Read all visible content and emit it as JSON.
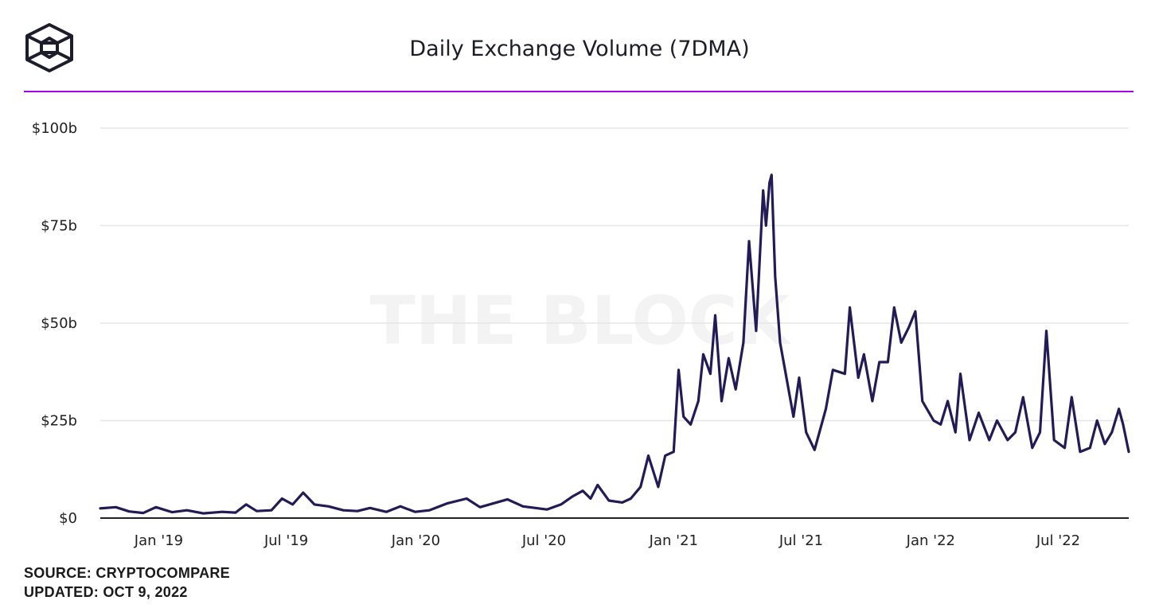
{
  "header": {
    "title": "Daily Exchange Volume (7DMA)",
    "logo_icon": "the-block-cube-icon"
  },
  "watermark": "THE BLOCK",
  "footer": {
    "source": "SOURCE: CRYPTOCOMPARE",
    "updated": "UPDATED: OCT 9, 2022"
  },
  "colors": {
    "accent_rule": "#a100e6",
    "series": "#221b55"
  },
  "chart_data": {
    "type": "line",
    "title": "Daily Exchange Volume (7DMA)",
    "xlabel": "",
    "ylabel": "",
    "grid": true,
    "ylim": [
      0,
      100
    ],
    "xlim": [
      "2018-10-10",
      "2022-10-09"
    ],
    "y_ticks": [
      {
        "value": 0,
        "label": "$0"
      },
      {
        "value": 25,
        "label": "$25b"
      },
      {
        "value": 50,
        "label": "$50b"
      },
      {
        "value": 75,
        "label": "$75b"
      },
      {
        "value": 100,
        "label": "$100b"
      }
    ],
    "x_ticks": [
      {
        "date": "2019-01-01",
        "label": "Jan '19"
      },
      {
        "date": "2019-07-01",
        "label": "Jul '19"
      },
      {
        "date": "2020-01-01",
        "label": "Jan '20"
      },
      {
        "date": "2020-07-01",
        "label": "Jul '20"
      },
      {
        "date": "2021-01-01",
        "label": "Jan '21"
      },
      {
        "date": "2021-07-01",
        "label": "Jul '21"
      },
      {
        "date": "2022-01-01",
        "label": "Jan '22"
      },
      {
        "date": "2022-07-01",
        "label": "Jul '22"
      }
    ],
    "series": [
      {
        "points": [
          [
            "2018-10-10",
            2.5
          ],
          [
            "2018-11-01",
            2.8
          ],
          [
            "2018-11-20",
            1.7
          ],
          [
            "2018-12-10",
            1.3
          ],
          [
            "2018-12-28",
            2.8
          ],
          [
            "2019-01-20",
            1.5
          ],
          [
            "2019-02-10",
            2.0
          ],
          [
            "2019-03-05",
            1.2
          ],
          [
            "2019-04-01",
            1.6
          ],
          [
            "2019-04-20",
            1.4
          ],
          [
            "2019-05-05",
            3.5
          ],
          [
            "2019-05-20",
            1.8
          ],
          [
            "2019-06-10",
            2.0
          ],
          [
            "2019-06-25",
            5.0
          ],
          [
            "2019-07-10",
            3.5
          ],
          [
            "2019-07-25",
            6.5
          ],
          [
            "2019-08-10",
            3.5
          ],
          [
            "2019-08-30",
            3.0
          ],
          [
            "2019-09-20",
            2.0
          ],
          [
            "2019-10-10",
            1.8
          ],
          [
            "2019-10-28",
            2.6
          ],
          [
            "2019-11-20",
            1.6
          ],
          [
            "2019-12-10",
            3.0
          ],
          [
            "2019-12-31",
            1.6
          ],
          [
            "2020-01-20",
            2.0
          ],
          [
            "2020-02-15",
            3.8
          ],
          [
            "2020-03-13",
            5.0
          ],
          [
            "2020-04-01",
            2.8
          ],
          [
            "2020-05-10",
            4.8
          ],
          [
            "2020-06-01",
            3.0
          ],
          [
            "2020-07-05",
            2.2
          ],
          [
            "2020-07-25",
            3.5
          ],
          [
            "2020-08-10",
            5.5
          ],
          [
            "2020-08-25",
            7.0
          ],
          [
            "2020-09-05",
            5.0
          ],
          [
            "2020-09-15",
            8.5
          ],
          [
            "2020-10-01",
            4.5
          ],
          [
            "2020-10-20",
            4.0
          ],
          [
            "2020-11-01",
            5.0
          ],
          [
            "2020-11-15",
            8.0
          ],
          [
            "2020-11-26",
            16.0
          ],
          [
            "2020-12-10",
            8.0
          ],
          [
            "2020-12-20",
            16.0
          ],
          [
            "2021-01-01",
            17.0
          ],
          [
            "2021-01-08",
            38.0
          ],
          [
            "2021-01-15",
            26.0
          ],
          [
            "2021-01-25",
            24.0
          ],
          [
            "2021-02-05",
            30.0
          ],
          [
            "2021-02-12",
            42.0
          ],
          [
            "2021-02-22",
            37.0
          ],
          [
            "2021-03-01",
            52.0
          ],
          [
            "2021-03-10",
            30.0
          ],
          [
            "2021-03-20",
            41.0
          ],
          [
            "2021-03-30",
            33.0
          ],
          [
            "2021-04-10",
            45.0
          ],
          [
            "2021-04-18",
            71.0
          ],
          [
            "2021-04-28",
            48.0
          ],
          [
            "2021-05-08",
            84.0
          ],
          [
            "2021-05-12",
            75.0
          ],
          [
            "2021-05-17",
            86.0
          ],
          [
            "2021-05-20",
            88.0
          ],
          [
            "2021-05-25",
            62.0
          ],
          [
            "2021-06-01",
            45.0
          ],
          [
            "2021-06-08",
            38.0
          ],
          [
            "2021-06-20",
            26.0
          ],
          [
            "2021-06-28",
            36.0
          ],
          [
            "2021-07-08",
            22.0
          ],
          [
            "2021-07-20",
            17.5
          ],
          [
            "2021-08-05",
            28.0
          ],
          [
            "2021-08-15",
            38.0
          ],
          [
            "2021-09-01",
            37.0
          ],
          [
            "2021-09-08",
            54.0
          ],
          [
            "2021-09-20",
            36.0
          ],
          [
            "2021-09-28",
            42.0
          ],
          [
            "2021-10-10",
            30.0
          ],
          [
            "2021-10-20",
            40.0
          ],
          [
            "2021-11-01",
            40.0
          ],
          [
            "2021-11-10",
            54.0
          ],
          [
            "2021-11-20",
            45.0
          ],
          [
            "2021-12-01",
            49.0
          ],
          [
            "2021-12-10",
            53.0
          ],
          [
            "2021-12-20",
            30.0
          ],
          [
            "2022-01-05",
            25.0
          ],
          [
            "2022-01-15",
            24.0
          ],
          [
            "2022-01-25",
            30.0
          ],
          [
            "2022-02-05",
            22.0
          ],
          [
            "2022-02-12",
            37.0
          ],
          [
            "2022-02-25",
            20.0
          ],
          [
            "2022-03-10",
            27.0
          ],
          [
            "2022-03-25",
            20.0
          ],
          [
            "2022-04-05",
            25.0
          ],
          [
            "2022-04-20",
            20.0
          ],
          [
            "2022-05-01",
            22.0
          ],
          [
            "2022-05-12",
            31.0
          ],
          [
            "2022-05-25",
            18.0
          ],
          [
            "2022-06-05",
            22.0
          ],
          [
            "2022-06-14",
            48.0
          ],
          [
            "2022-06-25",
            20.0
          ],
          [
            "2022-07-10",
            18.0
          ],
          [
            "2022-07-20",
            31.0
          ],
          [
            "2022-08-01",
            17.0
          ],
          [
            "2022-08-15",
            18.0
          ],
          [
            "2022-08-25",
            25.0
          ],
          [
            "2022-09-05",
            19.0
          ],
          [
            "2022-09-15",
            22.0
          ],
          [
            "2022-09-25",
            28.0
          ],
          [
            "2022-10-01",
            24.0
          ],
          [
            "2022-10-09",
            17.0
          ]
        ]
      }
    ]
  }
}
